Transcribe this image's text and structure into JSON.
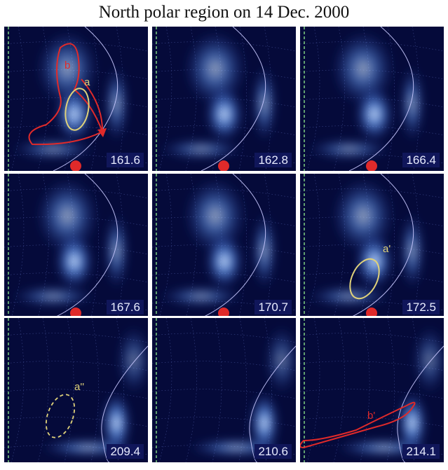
{
  "title": "North polar region on 14 Dec. 2000",
  "panels": [
    {
      "time": "161.6",
      "row": 0,
      "col": 0,
      "marker": true,
      "annotations": [
        "b",
        "a"
      ]
    },
    {
      "time": "162.8",
      "row": 0,
      "col": 1,
      "marker": true,
      "annotations": []
    },
    {
      "time": "166.4",
      "row": 0,
      "col": 2,
      "marker": true,
      "annotations": []
    },
    {
      "time": "167.6",
      "row": 1,
      "col": 0,
      "marker": true,
      "annotations": []
    },
    {
      "time": "170.7",
      "row": 1,
      "col": 1,
      "marker": true,
      "annotations": []
    },
    {
      "time": "172.5",
      "row": 1,
      "col": 2,
      "marker": true,
      "annotations": [
        "a'"
      ]
    },
    {
      "time": "209.4",
      "row": 2,
      "col": 0,
      "marker": false,
      "annotations": [
        "a''"
      ]
    },
    {
      "time": "210.6",
      "row": 2,
      "col": 1,
      "marker": false,
      "annotations": []
    },
    {
      "time": "214.1",
      "row": 2,
      "col": 2,
      "marker": false,
      "annotations": [
        "b'"
      ]
    }
  ],
  "annotation_labels": {
    "a": "a",
    "b": "b",
    "a_prime": "a'",
    "a_dprime": "a''",
    "b_prime": "b'"
  },
  "colors": {
    "background": "#050a3a",
    "aurora": "#6fa8ff",
    "bright": "#e6f2ff",
    "annotation_red": "#e02a2a",
    "annotation_yellow": "#e0d27a",
    "marker": "#e02a2a",
    "limb": "#c9c9ff",
    "meridian_dash": "#7fd07f"
  }
}
